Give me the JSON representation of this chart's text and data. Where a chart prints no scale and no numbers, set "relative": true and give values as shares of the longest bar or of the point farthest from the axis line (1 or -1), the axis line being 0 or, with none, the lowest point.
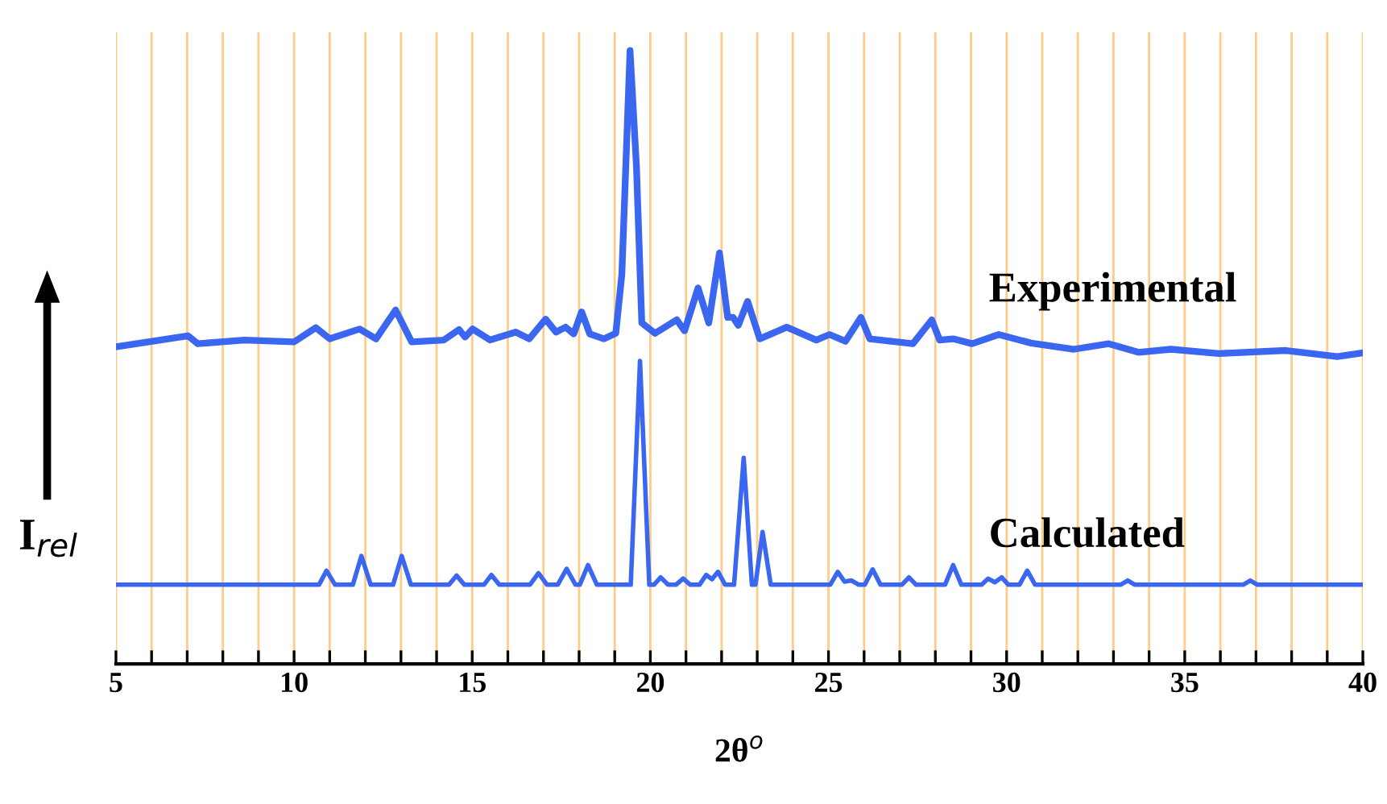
{
  "chart_data": {
    "type": "line",
    "relative": true,
    "xlabel": "2θ$^{o}$",
    "ylabel": "I$_{rel}$",
    "xlim": [
      5,
      40
    ],
    "xticks": [
      5,
      {
        "value": 6,
        "label": null
      },
      {
        "value": 7,
        "label": null
      },
      {
        "value": 8,
        "label": null
      },
      {
        "value": 9,
        "label": null
      },
      10,
      {
        "value": 11,
        "label": null
      },
      {
        "value": 12,
        "label": null
      },
      {
        "value": 13,
        "label": null
      },
      {
        "value": 14,
        "label": null
      },
      15,
      {
        "value": 16,
        "label": null
      },
      {
        "value": 17,
        "label": null
      },
      {
        "value": 18,
        "label": null
      },
      {
        "value": 19,
        "label": null
      },
      20,
      {
        "value": 21,
        "label": null
      },
      {
        "value": 22,
        "label": null
      },
      {
        "value": 23,
        "label": null
      },
      {
        "value": 24,
        "label": null
      },
      25,
      {
        "value": 26,
        "label": null
      },
      {
        "value": 27,
        "label": null
      },
      {
        "value": 28,
        "label": null
      },
      {
        "value": 29,
        "label": null
      },
      30,
      {
        "value": 31,
        "label": null
      },
      {
        "value": 32,
        "label": null
      },
      {
        "value": 33,
        "label": null
      },
      {
        "value": 34,
        "label": null
      },
      35,
      {
        "value": 36,
        "label": null
      },
      {
        "value": 37,
        "label": null
      },
      {
        "value": 38,
        "label": null
      },
      {
        "value": 39,
        "label": null
      },
      40
    ],
    "grid": "x",
    "tick_labels": "x",
    "legend": false,
    "marker": "none",
    "line_style": "solid",
    "series": [
      {
        "name": "Experimental",
        "color": "#3a66f0",
        "x": [
          5,
          7.02,
          7.3,
          8.6,
          10.0,
          10.61,
          11.0,
          11.84,
          12.3,
          12.85,
          13.3,
          14.2,
          14.63,
          14.8,
          15.01,
          15.5,
          16.22,
          16.6,
          17.06,
          17.35,
          17.62,
          17.85,
          18.07,
          18.3,
          18.7,
          19.03,
          19.2,
          19.43,
          19.61,
          19.76,
          20.13,
          20.74,
          20.96,
          21.34,
          21.64,
          21.94,
          22.17,
          22.32,
          22.47,
          22.73,
          23.07,
          23.83,
          24.66,
          25.03,
          25.48,
          25.91,
          26.16,
          27.37,
          27.9,
          28.12,
          28.5,
          29.03,
          29.78,
          30.69,
          31.89,
          32.87,
          33.7,
          34.61,
          35.96,
          37.84,
          39.28,
          40
        ],
        "values": [
          0.517,
          0.535,
          0.522,
          0.528,
          0.525,
          0.548,
          0.53,
          0.546,
          0.53,
          0.577,
          0.525,
          0.528,
          0.545,
          0.533,
          0.546,
          0.528,
          0.541,
          0.53,
          0.562,
          0.541,
          0.549,
          0.538,
          0.574,
          0.538,
          0.53,
          0.539,
          0.635,
          1.0,
          0.811,
          0.556,
          0.539,
          0.561,
          0.543,
          0.613,
          0.556,
          0.67,
          0.565,
          0.565,
          0.552,
          0.591,
          0.53,
          0.549,
          0.528,
          0.537,
          0.526,
          0.565,
          0.53,
          0.522,
          0.561,
          0.528,
          0.53,
          0.522,
          0.537,
          0.523,
          0.513,
          0.522,
          0.508,
          0.513,
          0.506,
          0.511,
          0.501,
          0.507
        ]
      },
      {
        "name": "Calculated",
        "color": "#3a66f0",
        "x": [
          5,
          10.7,
          10.91,
          11.15,
          11.65,
          11.89,
          12.15,
          12.78,
          13.02,
          13.28,
          14.35,
          14.56,
          14.78,
          15.33,
          15.54,
          15.76,
          16.62,
          16.86,
          17.1,
          17.4,
          17.65,
          17.9,
          18.02,
          18.25,
          18.5,
          19.45,
          19.71,
          19.97,
          20.1,
          20.29,
          20.5,
          20.72,
          20.92,
          21.12,
          21.38,
          21.57,
          21.73,
          21.9,
          22.1,
          22.35,
          22.62,
          22.85,
          22.95,
          23.15,
          23.38,
          25.05,
          25.26,
          25.45,
          25.64,
          25.85,
          26.02,
          26.24,
          26.46,
          27.06,
          27.26,
          27.46,
          28.27,
          28.5,
          28.73,
          29.3,
          29.48,
          29.67,
          29.86,
          30.05,
          30.36,
          30.58,
          30.8,
          33.2,
          33.4,
          33.6,
          36.64,
          36.84,
          37.04,
          40
        ],
        "values": [
          0.129,
          0.129,
          0.152,
          0.129,
          0.129,
          0.176,
          0.129,
          0.129,
          0.176,
          0.129,
          0.129,
          0.144,
          0.129,
          0.129,
          0.145,
          0.129,
          0.129,
          0.148,
          0.129,
          0.129,
          0.155,
          0.129,
          0.129,
          0.161,
          0.129,
          0.129,
          0.494,
          0.129,
          0.129,
          0.141,
          0.129,
          0.129,
          0.139,
          0.129,
          0.129,
          0.145,
          0.138,
          0.15,
          0.129,
          0.129,
          0.336,
          0.129,
          0.129,
          0.215,
          0.129,
          0.129,
          0.15,
          0.134,
          0.136,
          0.129,
          0.129,
          0.154,
          0.129,
          0.129,
          0.141,
          0.129,
          0.129,
          0.161,
          0.129,
          0.129,
          0.139,
          0.133,
          0.141,
          0.129,
          0.129,
          0.152,
          0.129,
          0.129,
          0.136,
          0.129,
          0.129,
          0.136,
          0.129,
          0.129
        ]
      }
    ]
  }
}
